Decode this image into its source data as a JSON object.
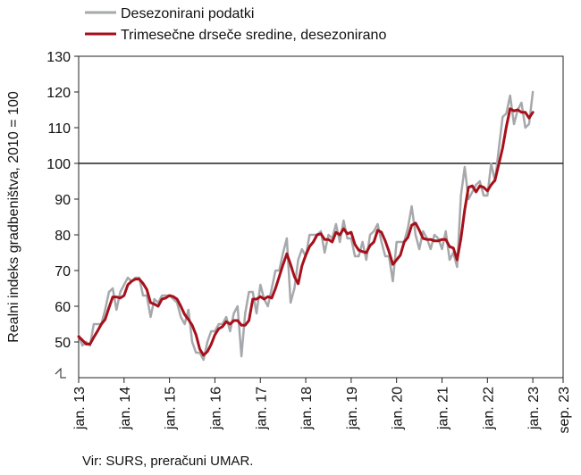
{
  "source": "Vir: SURS, preračuni UMAR.",
  "chart_data": {
    "type": "line",
    "title": "",
    "ylabel": "Realni indeks gradbeništva, 2010 = 100",
    "xlabel": "",
    "ylim": [
      40,
      130
    ],
    "yticks": [
      50,
      60,
      70,
      80,
      90,
      100,
      110,
      120,
      130
    ],
    "ytick_labels": [
      "50",
      "60",
      "70",
      "80",
      "90",
      "100",
      "110",
      "120",
      "130"
    ],
    "x_range": [
      "2013-01",
      "2023-09"
    ],
    "xtick_labels": [
      "jan. 13",
      "jan. 14",
      "jan. 15",
      "jan. 16",
      "jan. 17",
      "jan. 18",
      "jan. 19",
      "jan. 20",
      "jan. 21",
      "jan. 22",
      "jan. 23",
      "sep. 23"
    ],
    "xtick_months": [
      "2013-01",
      "2014-01",
      "2015-01",
      "2016-01",
      "2017-01",
      "2018-01",
      "2019-01",
      "2020-01",
      "2021-01",
      "2022-01",
      "2023-01",
      "2023-09"
    ],
    "reference_line": 100,
    "axis_break": true,
    "grid": false,
    "legend_position": "top-left",
    "series": [
      {
        "name": "Desezonirani podatki",
        "color": "#a6a8ab",
        "values": [
          52,
          49,
          50,
          49,
          55,
          55,
          55,
          59,
          64,
          65,
          59,
          64,
          66,
          68,
          67,
          68,
          68,
          63,
          63,
          57,
          62,
          61,
          63,
          63,
          63,
          62,
          61,
          57,
          55,
          59,
          50,
          47,
          47,
          45,
          50,
          53,
          53,
          55,
          55,
          57,
          53,
          58,
          60,
          46,
          58,
          64,
          64,
          58,
          66,
          62,
          60,
          65,
          70,
          70,
          75,
          79,
          61,
          65,
          73,
          76,
          74,
          80,
          80,
          80,
          81,
          75,
          80,
          79,
          83,
          78,
          84,
          79,
          79,
          74,
          74,
          78,
          73,
          80,
          81,
          83,
          78,
          74,
          74,
          67,
          78,
          78,
          78,
          82,
          88,
          80,
          76,
          81,
          79,
          76,
          80,
          79,
          76,
          81,
          73,
          75,
          71,
          91,
          99,
          90,
          92,
          94,
          95,
          91,
          91,
          100,
          95,
          104,
          113,
          114,
          119,
          111,
          115,
          117,
          110,
          111,
          120
        ]
      },
      {
        "name": "Trimesečne drseče sredine, desezonirano",
        "color": "#a6101b",
        "values": [
          51.5,
          50.5,
          49.4,
          49.4,
          51.3,
          53.1,
          55.0,
          56.3,
          59.6,
          62.6,
          62.6,
          62.3,
          63.0,
          66.0,
          67.0,
          67.6,
          67.6,
          66.4,
          64.7,
          61.0,
          60.6,
          60.0,
          62.0,
          62.3,
          63.0,
          62.7,
          62.0,
          60.0,
          57.7,
          56.3,
          54.7,
          52.0,
          48.0,
          46.3,
          47.3,
          49.3,
          52.0,
          53.7,
          54.3,
          55.7,
          55.0,
          56.0,
          56.0,
          54.7,
          54.7,
          56.0,
          62.0,
          62.0,
          62.7,
          62.0,
          62.7,
          62.3,
          65.0,
          68.3,
          71.7,
          74.7,
          71.7,
          68.3,
          66.3,
          71.3,
          74.3,
          76.7,
          78.0,
          80.0,
          80.3,
          78.7,
          78.7,
          78.0,
          80.7,
          80.0,
          81.7,
          80.3,
          80.7,
          77.3,
          75.7,
          75.3,
          75.0,
          77.0,
          78.0,
          81.3,
          80.7,
          78.3,
          75.3,
          71.7,
          73.0,
          74.3,
          78.0,
          79.3,
          82.7,
          83.3,
          81.3,
          79.0,
          78.7,
          78.7,
          78.3,
          78.3,
          78.7,
          78.7,
          76.7,
          76.3,
          73.0,
          79.0,
          87.0,
          93.3,
          93.7,
          92.0,
          93.7,
          93.3,
          92.3,
          94.0,
          95.3,
          99.7,
          104.3,
          110.3,
          115.3,
          114.7,
          115.0,
          114.3,
          114.3,
          112.7,
          114.3
        ]
      }
    ]
  }
}
